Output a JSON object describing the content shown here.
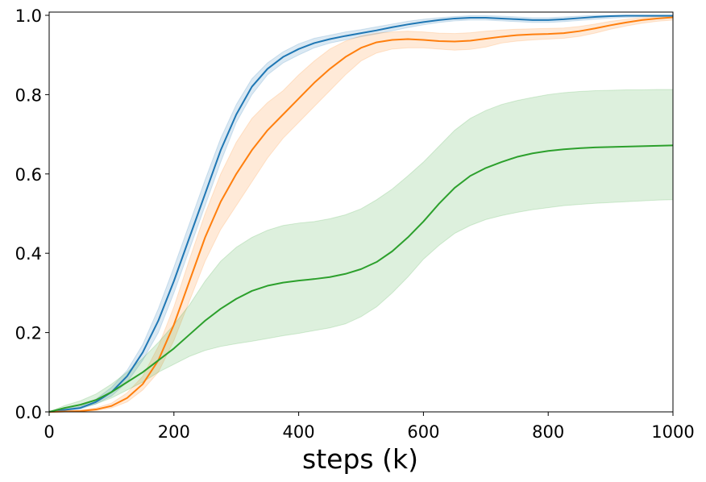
{
  "chart_data": {
    "type": "line",
    "title": "",
    "xlabel": "steps (k)",
    "ylabel": "",
    "xlim": [
      0,
      1000
    ],
    "ylim": [
      0,
      1.0
    ],
    "xticks": [
      0,
      200,
      400,
      600,
      800,
      1000
    ],
    "yticks": [
      0.0,
      0.2,
      0.4,
      0.6,
      0.8,
      1.0
    ],
    "xtick_labels": [
      "0",
      "200",
      "400",
      "600",
      "800",
      "1000"
    ],
    "ytick_labels": [
      "0.0",
      "0.2",
      "0.4",
      "0.6",
      "0.8",
      "1.0"
    ],
    "grid": false,
    "legend": "none",
    "x": [
      0,
      25,
      50,
      75,
      100,
      125,
      150,
      175,
      200,
      225,
      250,
      275,
      300,
      325,
      350,
      375,
      400,
      425,
      450,
      475,
      500,
      525,
      550,
      575,
      600,
      625,
      650,
      675,
      700,
      725,
      750,
      775,
      800,
      825,
      850,
      875,
      900,
      925,
      950,
      975,
      1000
    ],
    "series": [
      {
        "color": "#1f77b4",
        "values": [
          0.0,
          0.005,
          0.01,
          0.025,
          0.05,
          0.09,
          0.15,
          0.23,
          0.33,
          0.44,
          0.55,
          0.66,
          0.75,
          0.82,
          0.865,
          0.895,
          0.915,
          0.93,
          0.94,
          0.948,
          0.955,
          0.962,
          0.97,
          0.977,
          0.983,
          0.988,
          0.992,
          0.994,
          0.994,
          0.992,
          0.99,
          0.988,
          0.988,
          0.99,
          0.993,
          0.996,
          0.998,
          0.999,
          0.999,
          0.999,
          0.999
        ],
        "lower": [
          0.0,
          0.003,
          0.007,
          0.02,
          0.04,
          0.075,
          0.13,
          0.2,
          0.3,
          0.41,
          0.52,
          0.63,
          0.73,
          0.8,
          0.85,
          0.88,
          0.9,
          0.918,
          0.93,
          0.938,
          0.946,
          0.953,
          0.961,
          0.969,
          0.976,
          0.982,
          0.986,
          0.988,
          0.988,
          0.986,
          0.984,
          0.982,
          0.982,
          0.984,
          0.987,
          0.99,
          0.993,
          0.995,
          0.996,
          0.996,
          0.996
        ],
        "upper": [
          0.0,
          0.008,
          0.014,
          0.032,
          0.062,
          0.105,
          0.17,
          0.26,
          0.365,
          0.475,
          0.585,
          0.69,
          0.775,
          0.84,
          0.88,
          0.908,
          0.928,
          0.942,
          0.95,
          0.958,
          0.964,
          0.971,
          0.978,
          0.985,
          0.99,
          0.994,
          0.997,
          0.999,
          0.999,
          0.998,
          0.996,
          0.994,
          0.994,
          0.996,
          0.998,
          1.0,
          1.0,
          1.0,
          1.0,
          1.0,
          1.0
        ]
      },
      {
        "color": "#ff7f0e",
        "values": [
          0.0,
          0.001,
          0.002,
          0.006,
          0.015,
          0.035,
          0.07,
          0.13,
          0.22,
          0.33,
          0.44,
          0.53,
          0.6,
          0.66,
          0.71,
          0.75,
          0.79,
          0.83,
          0.865,
          0.895,
          0.918,
          0.932,
          0.938,
          0.94,
          0.938,
          0.935,
          0.934,
          0.936,
          0.941,
          0.946,
          0.95,
          0.952,
          0.953,
          0.955,
          0.96,
          0.967,
          0.975,
          0.982,
          0.988,
          0.992,
          0.995
        ],
        "lower": [
          0.0,
          0.0,
          0.001,
          0.003,
          0.01,
          0.025,
          0.055,
          0.1,
          0.18,
          0.28,
          0.38,
          0.46,
          0.52,
          0.58,
          0.64,
          0.69,
          0.73,
          0.77,
          0.81,
          0.85,
          0.885,
          0.905,
          0.915,
          0.918,
          0.918,
          0.915,
          0.912,
          0.914,
          0.92,
          0.93,
          0.935,
          0.938,
          0.94,
          0.942,
          0.947,
          0.955,
          0.965,
          0.973,
          0.98,
          0.985,
          0.988
        ],
        "upper": [
          0.0,
          0.002,
          0.004,
          0.01,
          0.022,
          0.048,
          0.09,
          0.165,
          0.265,
          0.385,
          0.5,
          0.6,
          0.68,
          0.74,
          0.78,
          0.81,
          0.85,
          0.885,
          0.915,
          0.935,
          0.948,
          0.955,
          0.958,
          0.96,
          0.958,
          0.955,
          0.954,
          0.956,
          0.96,
          0.963,
          0.965,
          0.966,
          0.967,
          0.968,
          0.972,
          0.978,
          0.985,
          0.99,
          0.994,
          0.997,
          0.999
        ]
      },
      {
        "color": "#2ca02c",
        "values": [
          0.0,
          0.01,
          0.018,
          0.03,
          0.05,
          0.075,
          0.1,
          0.13,
          0.16,
          0.195,
          0.23,
          0.26,
          0.285,
          0.305,
          0.318,
          0.326,
          0.331,
          0.335,
          0.34,
          0.348,
          0.36,
          0.378,
          0.405,
          0.44,
          0.48,
          0.525,
          0.565,
          0.595,
          0.615,
          0.63,
          0.643,
          0.652,
          0.658,
          0.662,
          0.665,
          0.667,
          0.668,
          0.669,
          0.67,
          0.671,
          0.672
        ],
        "lower": [
          0.0,
          0.005,
          0.01,
          0.02,
          0.035,
          0.055,
          0.075,
          0.1,
          0.12,
          0.14,
          0.155,
          0.165,
          0.172,
          0.178,
          0.185,
          0.192,
          0.198,
          0.205,
          0.212,
          0.222,
          0.24,
          0.265,
          0.3,
          0.34,
          0.385,
          0.42,
          0.45,
          0.47,
          0.485,
          0.495,
          0.503,
          0.51,
          0.515,
          0.52,
          0.523,
          0.526,
          0.528,
          0.53,
          0.532,
          0.534,
          0.535
        ],
        "upper": [
          0.0,
          0.016,
          0.028,
          0.045,
          0.07,
          0.1,
          0.135,
          0.175,
          0.22,
          0.27,
          0.33,
          0.38,
          0.415,
          0.44,
          0.458,
          0.47,
          0.476,
          0.48,
          0.487,
          0.497,
          0.512,
          0.535,
          0.562,
          0.595,
          0.63,
          0.67,
          0.71,
          0.74,
          0.76,
          0.775,
          0.785,
          0.793,
          0.8,
          0.805,
          0.808,
          0.81,
          0.811,
          0.812,
          0.812,
          0.813,
          0.813
        ]
      }
    ]
  }
}
